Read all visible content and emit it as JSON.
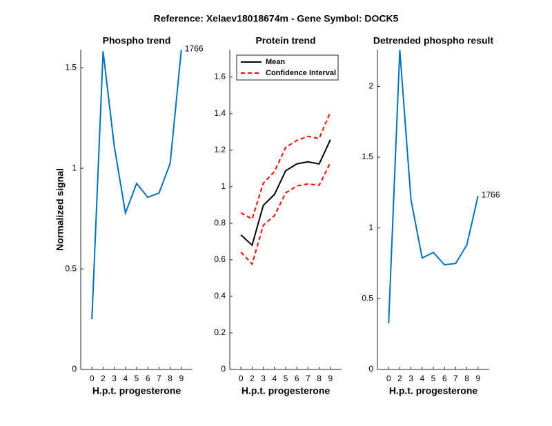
{
  "title": "Reference:  Xelaev18018674m - Gene Symbol:  DOCK5",
  "chart_data": [
    {
      "type": "line",
      "title": "Phospho trend",
      "xlabel": "H.p.t. progesterone",
      "ylabel": "Normalized signal",
      "categories": [
        "0",
        "2",
        "3",
        "4",
        "5",
        "6",
        "7",
        "8",
        "9"
      ],
      "values": [
        0.25,
        1.582,
        1.11,
        0.777,
        0.925,
        0.856,
        0.877,
        1.024,
        1.589
      ],
      "color": "#0072bd",
      "annotation": "1766",
      "ylim": [
        0,
        1.59
      ],
      "yticks": [
        0,
        0.5,
        1,
        1.5
      ]
    },
    {
      "type": "line",
      "title": "Protein trend",
      "xlabel": "H.p.t. progesterone",
      "categories": [
        "0",
        "2",
        "3",
        "4",
        "5",
        "6",
        "7",
        "8",
        "9"
      ],
      "series": [
        {
          "name": "Mean",
          "color": "#000000",
          "values": [
            0.736,
            0.68,
            0.898,
            0.958,
            1.087,
            1.125,
            1.136,
            1.125,
            1.257
          ]
        },
        {
          "name": "Confidence Interval",
          "color": "#ff0000",
          "dashed": true,
          "values": [
            0.857,
            0.823,
            1.019,
            1.083,
            1.215,
            1.253,
            1.275,
            1.264,
            1.408
          ],
          "lower_values": [
            0.642,
            0.577,
            0.789,
            0.842,
            0.966,
            1.004,
            1.015,
            1.008,
            1.132
          ]
        }
      ],
      "legend": "upper-left",
      "ylim": [
        0,
        1.75
      ],
      "yticks": [
        0,
        0.2,
        0.4,
        0.6,
        0.8,
        1,
        1.2,
        1.4,
        1.6
      ]
    },
    {
      "type": "line",
      "title": "Detrended phospho result",
      "xlabel": "H.p.t. progesterone",
      "categories": [
        "0",
        "2",
        "3",
        "4",
        "5",
        "6",
        "7",
        "8",
        "9"
      ],
      "values": [
        0.326,
        2.258,
        1.2,
        0.788,
        0.827,
        0.74,
        0.749,
        0.881,
        1.226
      ],
      "color": "#0072bd",
      "annotation": "1766",
      "ylim": [
        0,
        2.26
      ],
      "yticks": [
        0,
        0.5,
        1,
        1.5,
        2
      ]
    }
  ]
}
